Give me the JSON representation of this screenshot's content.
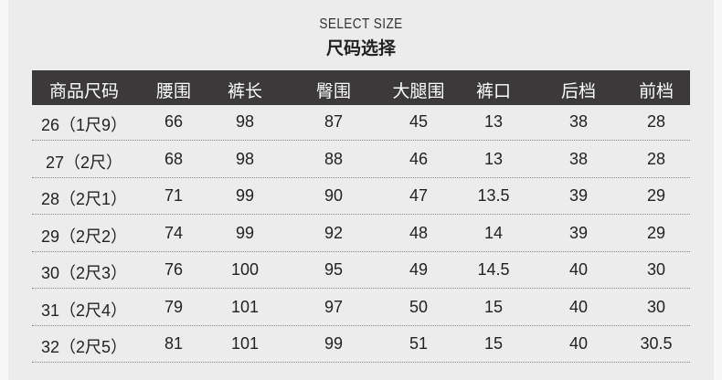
{
  "title_en": "SELECT SIZE",
  "title_cn": "尺码选择",
  "headers": [
    "商品尺码",
    "腰围",
    "裤长",
    "臀围",
    "大腿围",
    "裤口",
    "后档",
    "前档"
  ],
  "rows": [
    [
      "26（1尺9）",
      "66",
      "98",
      "87",
      "45",
      "13",
      "38",
      "28"
    ],
    [
      "27（2尺）",
      "68",
      "98",
      "88",
      "46",
      "13",
      "38",
      "28"
    ],
    [
      "28（2尺1）",
      "71",
      "99",
      "90",
      "47",
      "13.5",
      "39",
      "29"
    ],
    [
      "29（2尺2）",
      "74",
      "99",
      "92",
      "48",
      "14",
      "39",
      "29"
    ],
    [
      "30（2尺3）",
      "76",
      "100",
      "95",
      "49",
      "14.5",
      "40",
      "30"
    ],
    [
      "31（2尺4）",
      "79",
      "101",
      "97",
      "50",
      "15",
      "40",
      "30"
    ],
    [
      "32（2尺5）",
      "81",
      "101",
      "99",
      "51",
      "15",
      "40",
      "30.5"
    ]
  ],
  "colors": {
    "header_bg": "#3b3939",
    "background": "#edecec"
  }
}
